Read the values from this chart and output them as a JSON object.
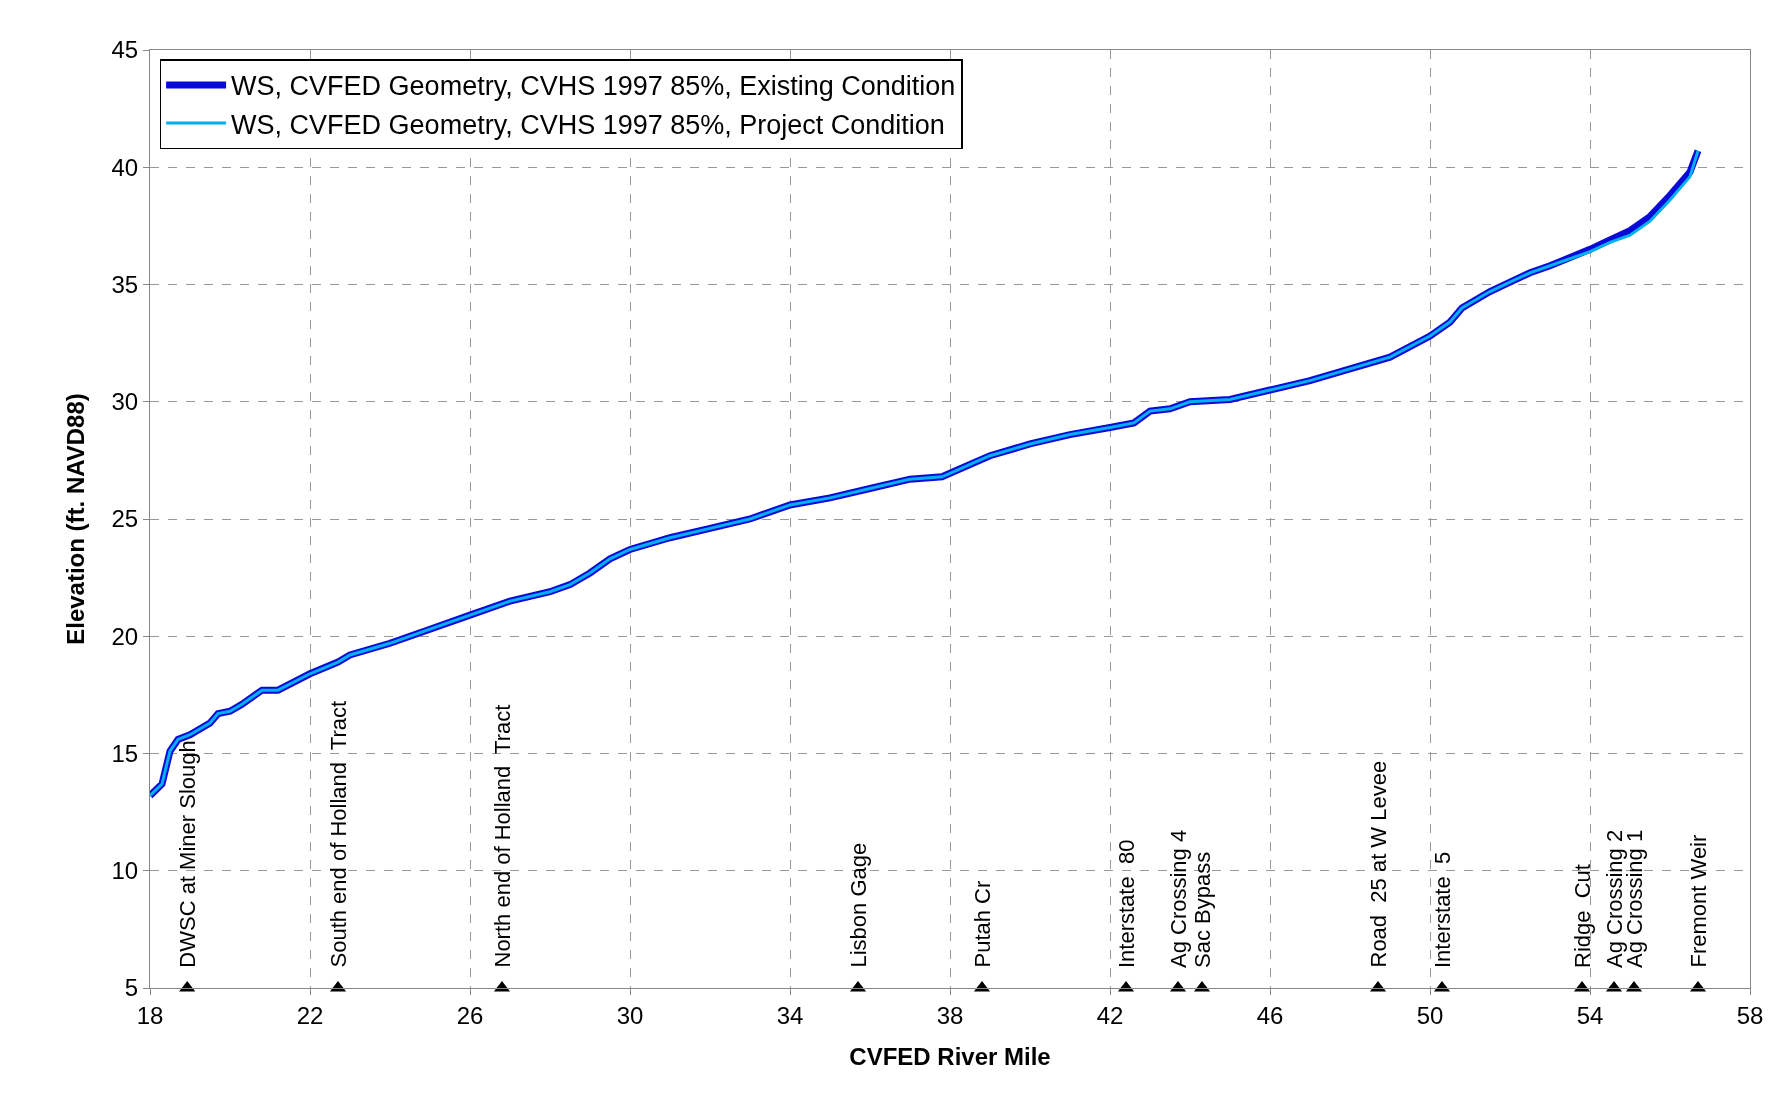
{
  "chart_data": {
    "type": "line",
    "xlabel": "CVFED River Mile",
    "ylabel": "Elevation (ft. NAVD88)",
    "xlim": [
      18,
      58
    ],
    "xticks": [
      18,
      22,
      26,
      30,
      34,
      38,
      42,
      46,
      50,
      54,
      58
    ],
    "ylim": [
      5,
      45
    ],
    "yticks": [
      5,
      10,
      15,
      20,
      25,
      30,
      35,
      40,
      45
    ],
    "grid": true,
    "legend": "top left",
    "line_style": "solid",
    "series": [
      {
        "name": "WS, CVFED Geometry, CVHS 1997 85%, Existing Condition",
        "color": "#0a0ad8",
        "x": [
          18,
          18.3,
          18.5,
          18.7,
          19,
          19.5,
          19.7,
          20,
          20.3,
          20.8,
          21.2,
          22,
          22.7,
          23,
          24,
          25,
          26,
          27,
          28,
          28.5,
          29,
          29.5,
          30,
          31,
          32,
          33,
          34,
          35,
          36,
          37,
          37.8,
          38.2,
          38.6,
          39,
          40,
          41,
          42,
          42.6,
          43,
          43.5,
          44,
          45,
          46,
          47,
          48,
          49,
          50,
          50.5,
          50.8,
          51,
          51.5,
          52,
          52.5,
          53,
          54,
          54.5,
          55,
          55.5,
          56,
          56.5,
          56.7
        ],
        "values": [
          13.2,
          13.7,
          15.1,
          15.6,
          15.8,
          16.3,
          16.7,
          16.8,
          17.1,
          17.7,
          17.7,
          18.4,
          18.9,
          19.2,
          19.7,
          20.3,
          20.9,
          21.5,
          21.9,
          22.2,
          22.7,
          23.3,
          23.7,
          24.2,
          24.6,
          25.0,
          25.6,
          25.9,
          26.3,
          26.7,
          26.8,
          27.1,
          27.4,
          27.7,
          28.2,
          28.6,
          28.9,
          29.1,
          29.6,
          29.7,
          30.0,
          30.1,
          30.5,
          30.9,
          31.4,
          31.9,
          32.8,
          33.4,
          34.0,
          34.2,
          34.7,
          35.1,
          35.5,
          35.8,
          36.5,
          36.9,
          37.3,
          37.9,
          38.8,
          39.8,
          40.7
        ]
      },
      {
        "name": "WS, CVFED Geometry, CVHS 1997 85%, Project Condition",
        "color": "#00b0f0",
        "x": [
          18,
          18.3,
          18.5,
          18.7,
          19,
          19.5,
          19.7,
          20,
          20.3,
          20.8,
          21.2,
          22,
          22.7,
          23,
          24,
          25,
          26,
          27,
          28,
          28.5,
          29,
          29.5,
          30,
          31,
          32,
          33,
          34,
          35,
          36,
          37,
          37.8,
          38.2,
          38.6,
          39,
          40,
          41,
          42,
          42.6,
          43,
          43.5,
          44,
          45,
          46,
          47,
          48,
          49,
          50,
          50.5,
          50.8,
          51,
          51.5,
          52,
          52.5,
          53,
          54,
          54.5,
          55,
          55.5,
          56,
          56.5,
          56.7
        ],
        "values": [
          13.2,
          13.7,
          15.1,
          15.6,
          15.8,
          16.3,
          16.7,
          16.8,
          17.1,
          17.7,
          17.7,
          18.4,
          18.9,
          19.2,
          19.7,
          20.3,
          20.9,
          21.5,
          21.9,
          22.2,
          22.7,
          23.3,
          23.7,
          24.2,
          24.6,
          25.0,
          25.6,
          25.9,
          26.3,
          26.7,
          26.8,
          27.1,
          27.4,
          27.7,
          28.2,
          28.6,
          28.9,
          29.1,
          29.6,
          29.7,
          30.0,
          30.1,
          30.5,
          30.9,
          31.4,
          31.9,
          32.8,
          33.4,
          34.0,
          34.2,
          34.7,
          35.1,
          35.5,
          35.8,
          36.4,
          36.8,
          37.1,
          37.7,
          38.6,
          39.6,
          40.7
        ]
      },
      {
        "type": "scatter",
        "marker": "triangle",
        "color": "#000000",
        "x": [
          18.93,
          22.7,
          26.8,
          35.7,
          38.8,
          42.4,
          43.7,
          44.3,
          48.7,
          50.3,
          53.8,
          54.6,
          55.1,
          56.7
        ],
        "values": [
          5,
          5,
          5,
          5,
          5,
          5,
          5,
          5,
          5,
          5,
          5,
          5,
          5,
          5
        ]
      }
    ],
    "annotations": [
      {
        "text": "DWSC at Miner Slough",
        "x": 18.93,
        "y": 5
      },
      {
        "text": "South end of Holland  Tract",
        "x": 22.7,
        "y": 5
      },
      {
        "text": "North end of Holland  Tract",
        "x": 26.8,
        "y": 5
      },
      {
        "text": "Lisbon Gage",
        "x": 35.7,
        "y": 5
      },
      {
        "text": "Putah Cr",
        "x": 38.8,
        "y": 5
      },
      {
        "text": "Interstate  80",
        "x": 42.4,
        "y": 5
      },
      {
        "text": "Ag Crossing 4",
        "x": 43.7,
        "y": 5
      },
      {
        "text": "Sac Bypass",
        "x": 44.3,
        "y": 5
      },
      {
        "text": "Road  25 at W Levee",
        "x": 48.7,
        "y": 5
      },
      {
        "text": "Interstate  5",
        "x": 50.3,
        "y": 5
      },
      {
        "text": "Ridge  Cut",
        "x": 53.8,
        "y": 5
      },
      {
        "text": "Ag Crossing 2",
        "x": 54.6,
        "y": 5
      },
      {
        "text": "Ag Crossing 1",
        "x": 55.1,
        "y": 5
      },
      {
        "text": "Fremont Weir",
        "x": 56.7,
        "y": 5
      }
    ]
  }
}
